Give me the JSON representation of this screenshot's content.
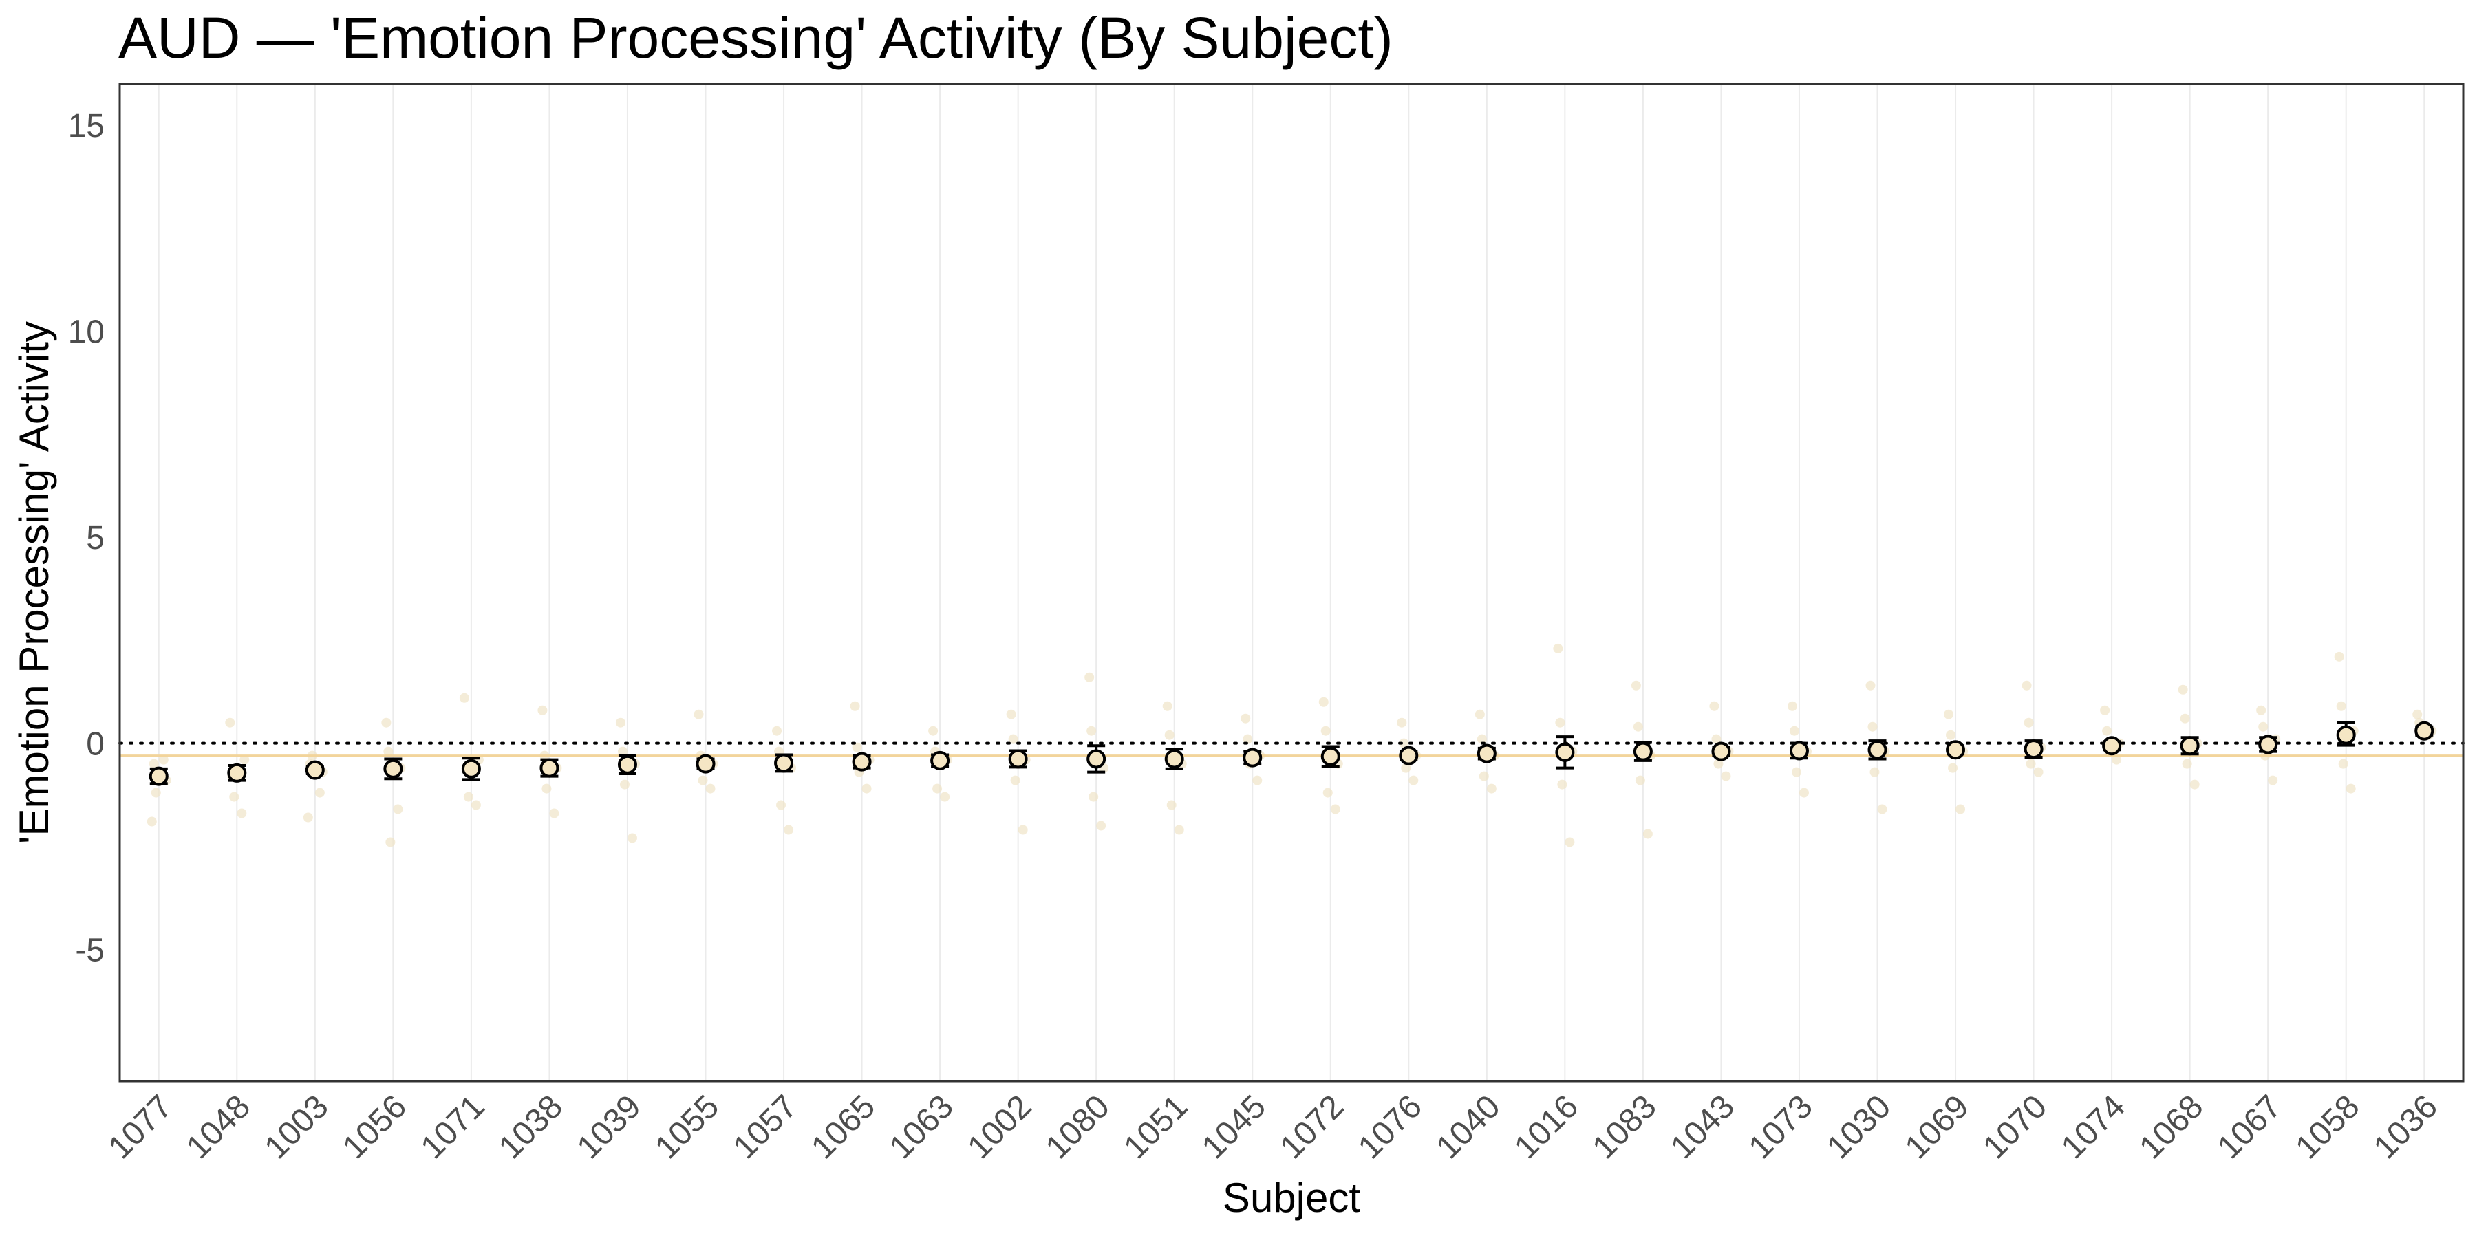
{
  "chart_data": {
    "type": "scatter",
    "title": "AUD — 'Emotion Processing' Activity (By Subject)",
    "xlabel": "Subject",
    "ylabel": "'Emotion Processing' Activity",
    "ylim": [
      -8.2,
      16.0
    ],
    "yticks": [
      -5,
      0,
      5,
      10,
      15
    ],
    "ytick_labels": [
      "-5",
      "0",
      "5",
      "10",
      "15"
    ],
    "grid": "vertical-major",
    "reference_lines": {
      "zero_line": {
        "y": 0,
        "style": "dotted",
        "color": "#000000"
      },
      "group_mean_line": {
        "y": -0.3,
        "style": "solid",
        "color": "#f2d49b"
      }
    },
    "colors": {
      "point_fill": "#f5e6c4",
      "raw_points": "#efe4c8",
      "error_bar": "#000000",
      "grid": "#ebebeb",
      "border": "#333333"
    },
    "categories": [
      "1077",
      "1048",
      "1003",
      "1056",
      "1071",
      "1038",
      "1039",
      "1055",
      "1057",
      "1065",
      "1063",
      "1002",
      "1080",
      "1051",
      "1045",
      "1072",
      "1076",
      "1040",
      "1016",
      "1083",
      "1043",
      "1073",
      "1030",
      "1069",
      "1070",
      "1074",
      "1068",
      "1067",
      "1058",
      "1036"
    ],
    "series": [
      {
        "means": [
          -0.8,
          -0.72,
          -0.65,
          -0.62,
          -0.62,
          -0.6,
          -0.52,
          -0.5,
          -0.48,
          -0.45,
          -0.42,
          -0.38,
          -0.38,
          -0.38,
          -0.35,
          -0.32,
          -0.3,
          -0.25,
          -0.22,
          -0.2,
          -0.2,
          -0.18,
          -0.16,
          -0.16,
          -0.14,
          -0.06,
          -0.06,
          -0.03,
          0.2,
          0.3
        ],
        "err_low": [
          -0.98,
          -0.9,
          -0.74,
          -0.86,
          -0.88,
          -0.8,
          -0.74,
          -0.62,
          -0.68,
          -0.6,
          -0.56,
          -0.58,
          -0.7,
          -0.62,
          -0.5,
          -0.56,
          -0.4,
          -0.38,
          -0.6,
          -0.42,
          -0.3,
          -0.36,
          -0.38,
          -0.26,
          -0.34,
          -0.16,
          -0.26,
          -0.2,
          -0.05,
          0.2
        ],
        "err_high": [
          -0.62,
          -0.54,
          -0.56,
          -0.38,
          -0.36,
          -0.4,
          -0.3,
          -0.38,
          -0.28,
          -0.3,
          -0.28,
          -0.18,
          -0.06,
          -0.14,
          -0.2,
          -0.08,
          -0.2,
          -0.12,
          0.16,
          0.02,
          -0.1,
          0.0,
          0.06,
          -0.06,
          0.06,
          0.04,
          0.14,
          0.14,
          0.5,
          0.4
        ],
        "raw_points": [
          [
            -1.9,
            -0.4,
            -1.2,
            -0.9,
            -0.5
          ],
          [
            0.5,
            -1.7,
            -1.3,
            -0.4,
            -0.8
          ],
          [
            -1.8,
            -1.2,
            -0.3,
            -0.7,
            -0.5
          ],
          [
            0.5,
            -1.6,
            -2.4,
            -0.6,
            -0.2
          ],
          [
            1.1,
            -1.5,
            -1.3,
            -0.4,
            -0.6
          ],
          [
            0.8,
            -1.7,
            -1.1,
            -0.6,
            -0.3
          ],
          [
            0.5,
            -2.3,
            -1.0,
            -0.5,
            -0.2
          ],
          [
            0.7,
            -1.1,
            -0.9,
            -0.5,
            -0.3
          ],
          [
            0.3,
            -2.1,
            -1.5,
            -0.6,
            -0.2
          ],
          [
            0.9,
            -1.1,
            -0.7,
            -0.4,
            -0.1
          ],
          [
            0.3,
            -1.3,
            -1.1,
            -0.4,
            -0.2
          ],
          [
            0.7,
            -2.1,
            -0.9,
            -0.4,
            0.1
          ],
          [
            1.6,
            -2.0,
            -1.3,
            -0.6,
            0.3
          ],
          [
            0.9,
            -2.1,
            -1.5,
            -0.5,
            0.2
          ],
          [
            0.6,
            -0.9,
            -0.5,
            -0.3,
            0.1
          ],
          [
            1.0,
            -1.6,
            -1.2,
            -0.5,
            0.3
          ],
          [
            0.5,
            -0.9,
            -0.6,
            -0.3,
            0.0
          ],
          [
            0.7,
            -1.1,
            -0.8,
            -0.3,
            0.1
          ],
          [
            2.3,
            -2.4,
            -1.0,
            -0.2,
            0.5
          ],
          [
            1.4,
            -2.2,
            -0.9,
            -0.3,
            0.4
          ],
          [
            0.9,
            -0.8,
            -0.5,
            -0.2,
            0.1
          ],
          [
            0.9,
            -1.2,
            -0.7,
            -0.2,
            0.3
          ],
          [
            1.4,
            -1.6,
            -0.7,
            -0.2,
            0.4
          ],
          [
            0.7,
            -1.6,
            -0.6,
            -0.2,
            0.2
          ],
          [
            1.4,
            -0.7,
            -0.5,
            -0.1,
            0.5
          ],
          [
            0.8,
            -0.4,
            -0.2,
            0.0,
            0.3
          ],
          [
            1.3,
            -1.0,
            -0.5,
            0.0,
            0.6
          ],
          [
            0.8,
            -0.9,
            -0.3,
            0.1,
            0.4
          ],
          [
            2.1,
            -1.1,
            -0.5,
            0.3,
            0.9
          ],
          [
            0.7,
            0.2,
            0.4,
            0.3,
            0.5
          ]
        ]
      }
    ]
  }
}
